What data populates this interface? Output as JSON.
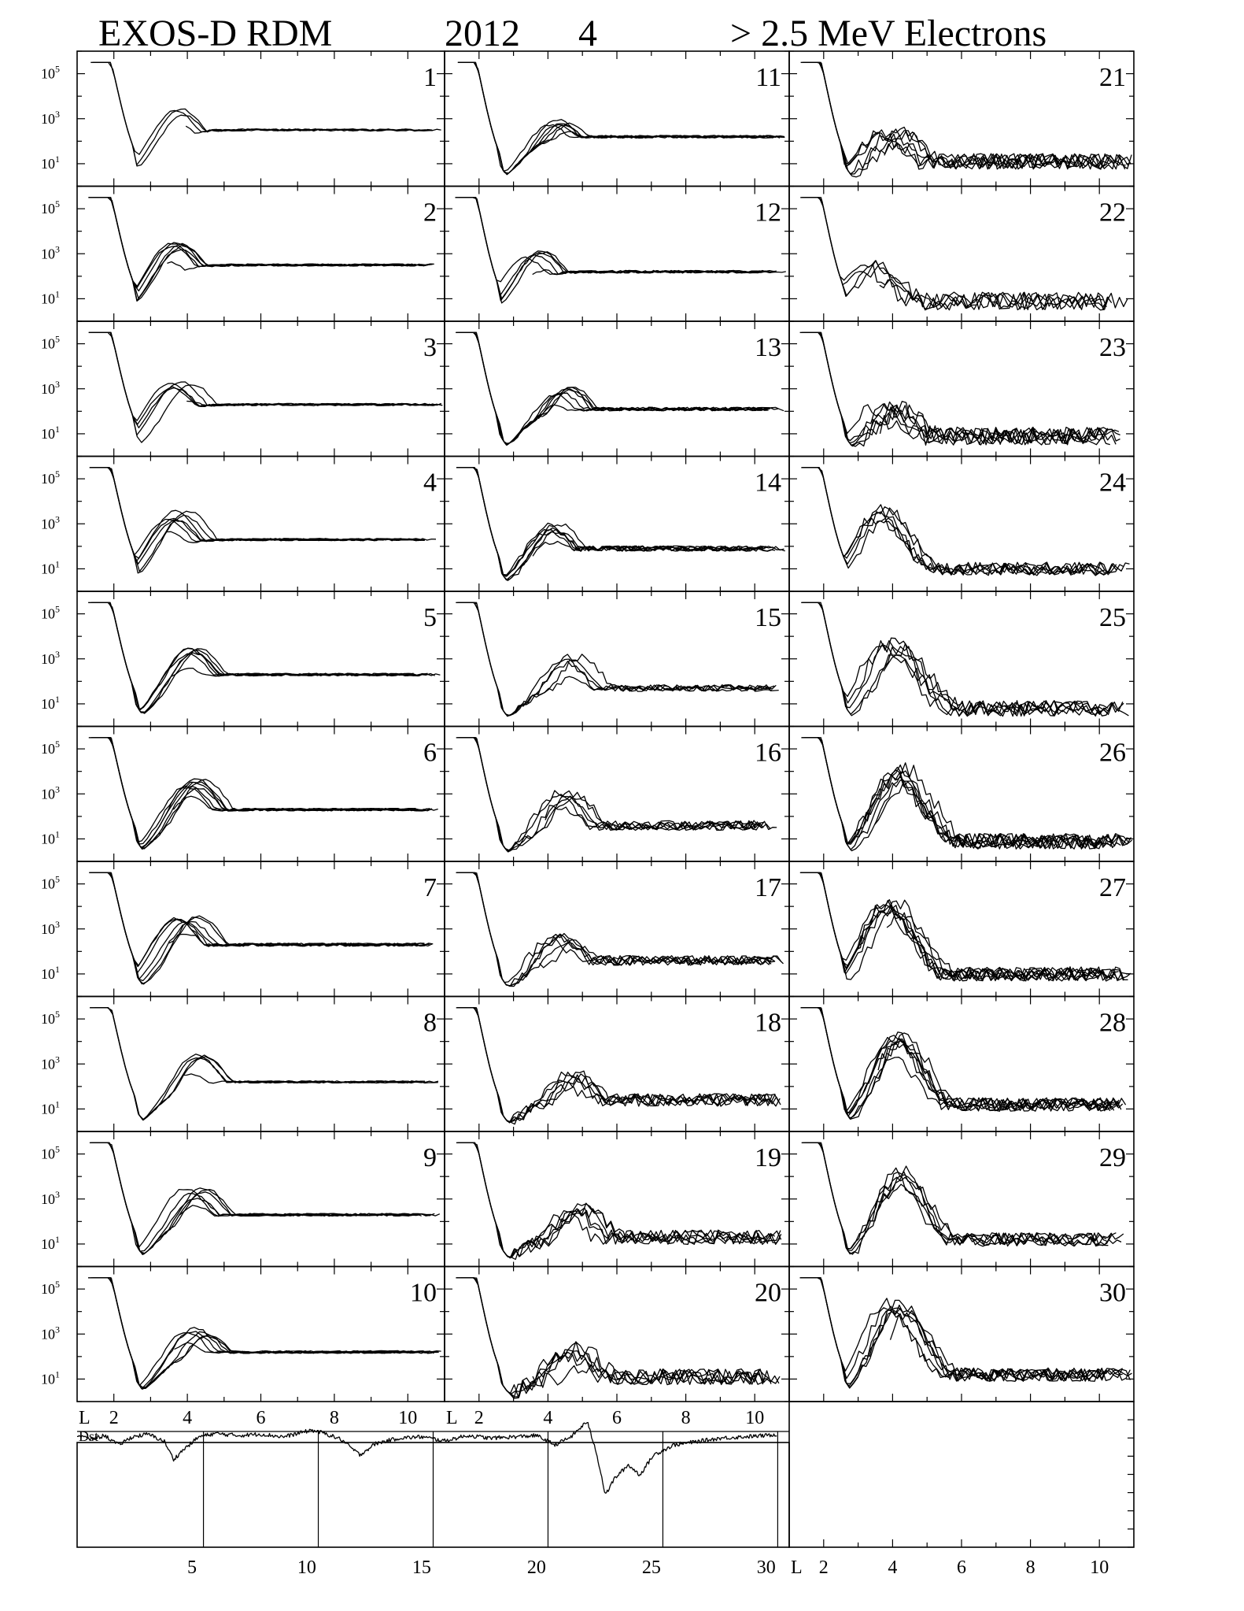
{
  "header": {
    "instrument": "EXOS-D RDM",
    "year": "2012",
    "month": "4",
    "species": "> 2.5  MeV Electrons"
  },
  "chart_data": {
    "type": "line",
    "panel_layout": {
      "columns": [
        {
          "days": [
            1,
            2,
            3,
            4,
            5,
            6,
            7,
            8,
            9,
            10
          ]
        },
        {
          "days": [
            11,
            12,
            13,
            14,
            15,
            16,
            17,
            18,
            19,
            20
          ]
        },
        {
          "days": [
            21,
            22,
            23,
            24,
            25,
            26,
            27,
            28,
            29,
            30
          ]
        }
      ]
    },
    "xaxis": {
      "label": "L",
      "range": [
        1,
        11
      ],
      "ticks": [
        "2",
        "4",
        "6",
        "8",
        "10"
      ]
    },
    "yaxis": {
      "scale": "log",
      "range_exp": [
        0,
        6
      ],
      "ticks": [
        {
          "base": "10",
          "exp": "5"
        },
        {
          "base": "10",
          "exp": "3"
        },
        {
          "base": "10",
          "exp": "1"
        }
      ]
    },
    "profile_params": {
      "1": {
        "peak": 3.8,
        "height": 3.3,
        "bg": 2.5,
        "noise": 0.05,
        "n": 4
      },
      "2": {
        "peak": 3.6,
        "height": 3.4,
        "bg": 2.5,
        "noise": 0.05,
        "n": 7
      },
      "3": {
        "peak": 3.8,
        "height": 3.2,
        "bg": 2.3,
        "noise": 0.05,
        "n": 6
      },
      "4": {
        "peak": 3.8,
        "height": 3.4,
        "bg": 2.3,
        "noise": 0.05,
        "n": 7
      },
      "5": {
        "peak": 4.0,
        "height": 3.4,
        "bg": 2.3,
        "noise": 0.06,
        "n": 7
      },
      "6": {
        "peak": 4.2,
        "height": 3.5,
        "bg": 2.3,
        "noise": 0.06,
        "n": 8
      },
      "7": {
        "peak": 4.0,
        "height": 3.4,
        "bg": 2.3,
        "noise": 0.07,
        "n": 8
      },
      "8": {
        "peak": 4.3,
        "height": 3.3,
        "bg": 2.2,
        "noise": 0.05,
        "n": 5
      },
      "9": {
        "peak": 4.2,
        "height": 3.3,
        "bg": 2.3,
        "noise": 0.06,
        "n": 7
      },
      "10": {
        "peak": 4.3,
        "height": 3.2,
        "bg": 2.2,
        "noise": 0.06,
        "n": 7
      },
      "11": {
        "peak": 4.3,
        "height": 3.0,
        "bg": 2.2,
        "noise": 0.06,
        "n": 7
      },
      "12": {
        "peak": 3.6,
        "height": 3.0,
        "bg": 2.2,
        "noise": 0.06,
        "n": 6
      },
      "13": {
        "peak": 4.4,
        "height": 3.0,
        "bg": 2.1,
        "noise": 0.08,
        "n": 7
      },
      "14": {
        "peak": 4.1,
        "height": 2.9,
        "bg": 1.9,
        "noise": 0.12,
        "n": 7
      },
      "15": {
        "peak": 4.6,
        "height": 3.0,
        "bg": 1.7,
        "noise": 0.15,
        "n": 5
      },
      "16": {
        "peak": 4.6,
        "height": 3.0,
        "bg": 1.6,
        "noise": 0.22,
        "n": 6
      },
      "17": {
        "peak": 4.4,
        "height": 2.7,
        "bg": 1.6,
        "noise": 0.22,
        "n": 6
      },
      "18": {
        "peak": 4.6,
        "height": 2.5,
        "bg": 1.4,
        "noise": 0.28,
        "n": 6
      },
      "19": {
        "peak": 4.8,
        "height": 2.6,
        "bg": 1.3,
        "noise": 0.32,
        "n": 6
      },
      "20": {
        "peak": 4.8,
        "height": 2.3,
        "bg": 1.1,
        "noise": 0.35,
        "n": 6
      },
      "21": {
        "peak": 4.0,
        "height": 2.3,
        "bg": 1.1,
        "noise": 0.35,
        "n": 7
      },
      "22": {
        "peak": 3.4,
        "height": 2.3,
        "bg": 0.9,
        "noise": 0.4,
        "n": 5
      },
      "23": {
        "peak": 3.9,
        "height": 2.0,
        "bg": 0.9,
        "noise": 0.4,
        "n": 7
      },
      "24": {
        "peak": 3.8,
        "height": 3.5,
        "bg": 1.0,
        "noise": 0.3,
        "n": 6
      },
      "25": {
        "peak": 4.0,
        "height": 3.6,
        "bg": 0.8,
        "noise": 0.35,
        "n": 6
      },
      "26": {
        "peak": 4.1,
        "height": 3.9,
        "bg": 0.9,
        "noise": 0.35,
        "n": 8
      },
      "27": {
        "peak": 4.0,
        "height": 4.1,
        "bg": 1.0,
        "noise": 0.32,
        "n": 8
      },
      "28": {
        "peak": 4.3,
        "height": 4.1,
        "bg": 1.2,
        "noise": 0.3,
        "n": 8
      },
      "29": {
        "peak": 4.2,
        "height": 4.1,
        "bg": 1.2,
        "noise": 0.3,
        "n": 6
      },
      "30": {
        "peak": 4.1,
        "height": 4.3,
        "bg": 1.2,
        "noise": 0.3,
        "n": 7
      }
    },
    "dst": {
      "label": "Dst",
      "xaxis": {
        "range": [
          0,
          31
        ],
        "ticks": [
          "5",
          "10",
          "15",
          "20",
          "25",
          "30"
        ],
        "day_markers": [
          5,
          10,
          15,
          20,
          25,
          30
        ]
      },
      "yaxis": {
        "range": [
          -150,
          30
        ]
      },
      "hourly_shape": [
        {
          "day": 0.0,
          "value": -5
        },
        {
          "day": 0.6,
          "value": -12
        },
        {
          "day": 1.2,
          "value": -6
        },
        {
          "day": 1.8,
          "value": -20
        },
        {
          "day": 2.4,
          "value": -8
        },
        {
          "day": 3.1,
          "value": -4
        },
        {
          "day": 3.8,
          "value": -15
        },
        {
          "day": 4.2,
          "value": -42
        },
        {
          "day": 4.6,
          "value": -28
        },
        {
          "day": 5.3,
          "value": -8
        },
        {
          "day": 6.0,
          "value": -3
        },
        {
          "day": 7.0,
          "value": -6
        },
        {
          "day": 8.0,
          "value": -4
        },
        {
          "day": 9.0,
          "value": -8
        },
        {
          "day": 10.2,
          "value": 2
        },
        {
          "day": 10.8,
          "value": -3
        },
        {
          "day": 11.5,
          "value": -12
        },
        {
          "day": 12.3,
          "value": -35
        },
        {
          "day": 13.0,
          "value": -18
        },
        {
          "day": 14.0,
          "value": -10
        },
        {
          "day": 15.0,
          "value": -8
        },
        {
          "day": 16.0,
          "value": -14
        },
        {
          "day": 17.0,
          "value": -6
        },
        {
          "day": 18.0,
          "value": -10
        },
        {
          "day": 19.0,
          "value": -8
        },
        {
          "day": 20.0,
          "value": -6
        },
        {
          "day": 20.8,
          "value": -20
        },
        {
          "day": 21.5,
          "value": -8
        },
        {
          "day": 22.2,
          "value": 15
        },
        {
          "day": 22.6,
          "value": -30
        },
        {
          "day": 23.0,
          "value": -95
        },
        {
          "day": 23.4,
          "value": -70
        },
        {
          "day": 24.0,
          "value": -50
        },
        {
          "day": 24.5,
          "value": -65
        },
        {
          "day": 25.1,
          "value": -35
        },
        {
          "day": 26.0,
          "value": -20
        },
        {
          "day": 27.0,
          "value": -15
        },
        {
          "day": 28.0,
          "value": -10
        },
        {
          "day": 29.0,
          "value": -8
        },
        {
          "day": 30.0,
          "value": -6
        },
        {
          "day": 30.5,
          "value": -4
        }
      ]
    }
  }
}
